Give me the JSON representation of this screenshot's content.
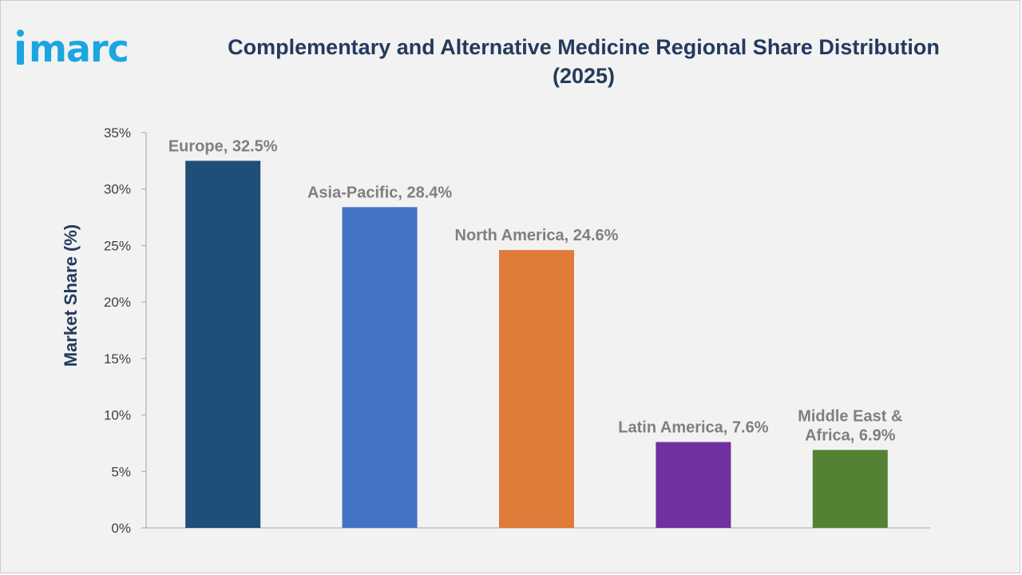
{
  "header": {
    "logo_text": "imarc",
    "title_line1": "Complementary and Alternative Medicine Regional Share Distribution",
    "title_line2": "(2025)"
  },
  "chart_data": {
    "type": "bar",
    "title": "Complementary and Alternative Medicine Regional Share Distribution (2025)",
    "xlabel": "",
    "ylabel": "Market Share (%)",
    "ylim": [
      0,
      35
    ],
    "yticks": [
      "0%",
      "5%",
      "10%",
      "15%",
      "20%",
      "25%",
      "30%",
      "35%"
    ],
    "grid": false,
    "categories": [
      "Europe",
      "Asia-Pacific",
      "North America",
      "Latin America",
      "Middle East & Africa"
    ],
    "values": [
      32.5,
      28.4,
      24.6,
      7.6,
      6.9
    ],
    "data_labels": [
      [
        "Europe, 32.5%"
      ],
      [
        "Asia-Pacific, 28.4%"
      ],
      [
        "North America, 24.6%"
      ],
      [
        "Latin America, 7.6%"
      ],
      [
        "Middle East &",
        "Africa, 6.9%"
      ]
    ],
    "colors": [
      "#1f4e79",
      "#4472c4",
      "#e07b39",
      "#7030a0",
      "#548235"
    ]
  }
}
